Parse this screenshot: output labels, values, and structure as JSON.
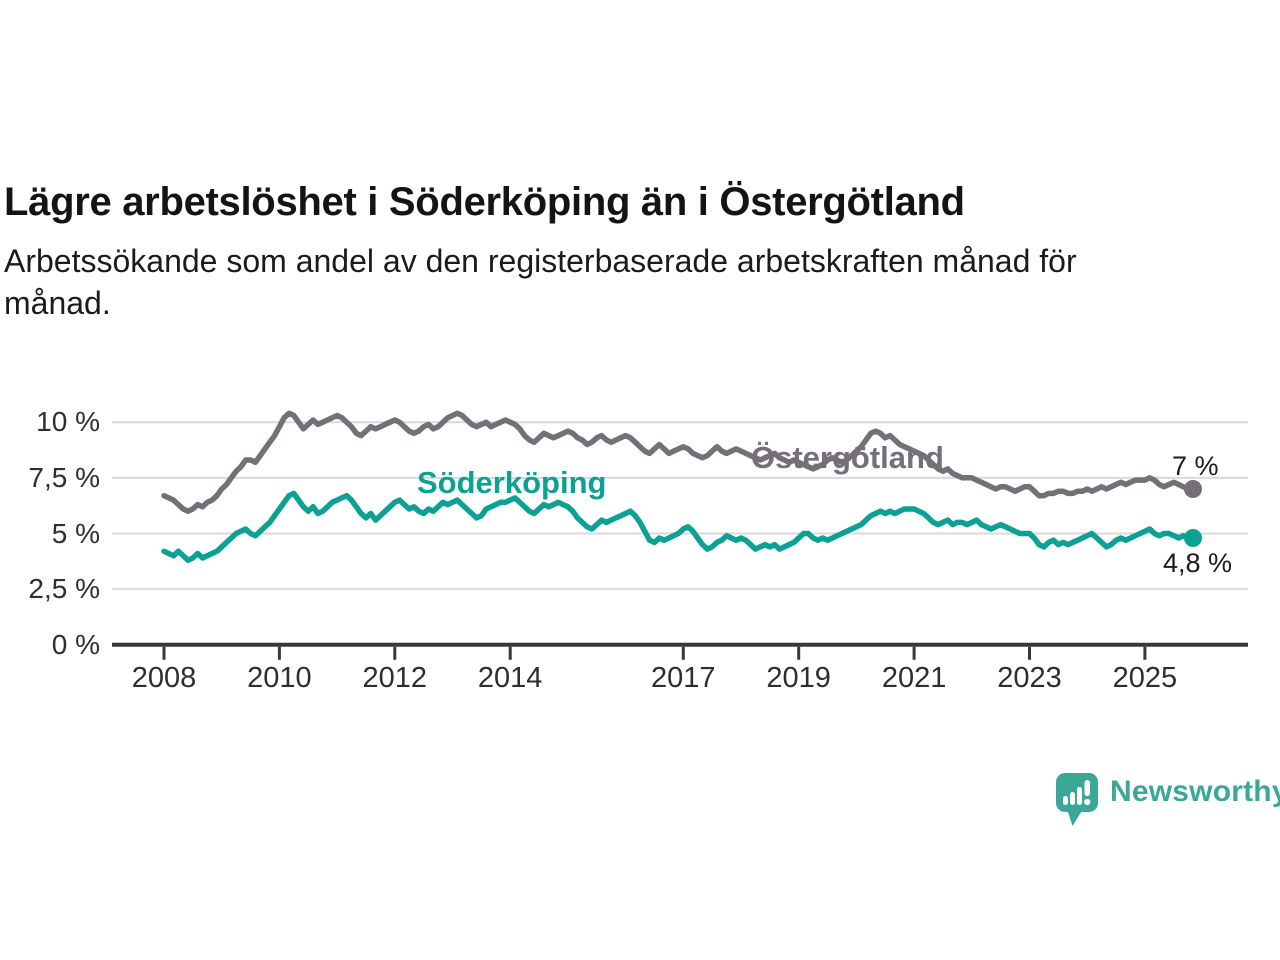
{
  "chart_data": {
    "type": "line",
    "title": "Lägre arbetslöshet i Söderköping än i Östergötland",
    "subtitle_lines": [
      "Arbetssökande som andel av den registerbaserade arbetskraften månad för",
      "månad."
    ],
    "x_unit": "month",
    "x_start": "2008-01",
    "x_end": "2025-11",
    "x_tick_years": [
      2008,
      2010,
      2012,
      2014,
      2017,
      2019,
      2021,
      2023,
      2025
    ],
    "y_ticks": [
      {
        "value": 10,
        "label": "10 %"
      },
      {
        "value": 7.5,
        "label": "7,5 %"
      },
      {
        "value": 5,
        "label": "5 %"
      },
      {
        "value": 2.5,
        "label": "2,5 %"
      },
      {
        "value": 0,
        "label": "0 %"
      }
    ],
    "ylim": [
      0,
      11
    ],
    "grid": true,
    "legend_position": "inline-labels",
    "series": [
      {
        "name": "Östergötland",
        "color": "#756f77",
        "end_label": "7 %",
        "end_value": 7.0,
        "values": [
          6.7,
          6.6,
          6.5,
          6.3,
          6.1,
          6.0,
          6.1,
          6.3,
          6.2,
          6.4,
          6.5,
          6.7,
          7.0,
          7.2,
          7.5,
          7.8,
          8.0,
          8.3,
          8.3,
          8.2,
          8.5,
          8.8,
          9.1,
          9.4,
          9.8,
          10.2,
          10.4,
          10.3,
          10.0,
          9.7,
          9.9,
          10.1,
          9.9,
          10.0,
          10.1,
          10.2,
          10.3,
          10.2,
          10.0,
          9.8,
          9.5,
          9.4,
          9.6,
          9.8,
          9.7,
          9.8,
          9.9,
          10.0,
          10.1,
          10.0,
          9.8,
          9.6,
          9.5,
          9.6,
          9.8,
          9.9,
          9.7,
          9.8,
          10.0,
          10.2,
          10.3,
          10.4,
          10.3,
          10.1,
          9.9,
          9.8,
          9.9,
          10.0,
          9.8,
          9.9,
          10.0,
          10.1,
          10.0,
          9.9,
          9.7,
          9.4,
          9.2,
          9.1,
          9.3,
          9.5,
          9.4,
          9.3,
          9.4,
          9.5,
          9.6,
          9.5,
          9.3,
          9.2,
          9.0,
          9.1,
          9.3,
          9.4,
          9.2,
          9.1,
          9.2,
          9.3,
          9.4,
          9.3,
          9.1,
          8.9,
          8.7,
          8.6,
          8.8,
          9.0,
          8.8,
          8.6,
          8.7,
          8.8,
          8.9,
          8.8,
          8.6,
          8.5,
          8.4,
          8.5,
          8.7,
          8.9,
          8.7,
          8.6,
          8.7,
          8.8,
          8.7,
          8.6,
          8.5,
          8.4,
          8.3,
          8.4,
          8.5,
          8.6,
          8.4,
          8.3,
          8.2,
          8.3,
          8.2,
          8.1,
          8.0,
          7.9,
          8.0,
          8.1,
          8.3,
          8.4,
          8.3,
          8.2,
          8.3,
          8.5,
          8.7,
          8.9,
          9.2,
          9.5,
          9.6,
          9.5,
          9.3,
          9.4,
          9.2,
          9.0,
          8.9,
          8.8,
          8.7,
          8.6,
          8.5,
          8.3,
          8.1,
          7.9,
          7.8,
          7.9,
          7.7,
          7.6,
          7.5,
          7.5,
          7.5,
          7.4,
          7.3,
          7.2,
          7.1,
          7.0,
          7.1,
          7.1,
          7.0,
          6.9,
          7.0,
          7.1,
          7.1,
          6.9,
          6.7,
          6.7,
          6.8,
          6.8,
          6.9,
          6.9,
          6.8,
          6.8,
          6.9,
          6.9,
          7.0,
          6.9,
          7.0,
          7.1,
          7.0,
          7.1,
          7.2,
          7.3,
          7.2,
          7.3,
          7.4,
          7.4,
          7.4,
          7.5,
          7.4,
          7.2,
          7.1,
          7.2,
          7.3,
          7.2,
          7.1,
          7.0,
          7.0
        ]
      },
      {
        "name": "Söderköping",
        "color": "#0ca192",
        "end_label": "4,8 %",
        "end_value": 4.8,
        "values": [
          4.2,
          4.1,
          4.0,
          4.2,
          4.0,
          3.8,
          3.9,
          4.1,
          3.9,
          4.0,
          4.1,
          4.2,
          4.4,
          4.6,
          4.8,
          5.0,
          5.1,
          5.2,
          5.0,
          4.9,
          5.1,
          5.3,
          5.5,
          5.8,
          6.1,
          6.4,
          6.7,
          6.8,
          6.5,
          6.2,
          6.0,
          6.2,
          5.9,
          6.0,
          6.2,
          6.4,
          6.5,
          6.6,
          6.7,
          6.5,
          6.2,
          5.9,
          5.7,
          5.9,
          5.6,
          5.8,
          6.0,
          6.2,
          6.4,
          6.5,
          6.3,
          6.1,
          6.2,
          6.0,
          5.9,
          6.1,
          6.0,
          6.2,
          6.4,
          6.3,
          6.4,
          6.5,
          6.3,
          6.1,
          5.9,
          5.7,
          5.8,
          6.1,
          6.2,
          6.3,
          6.4,
          6.4,
          6.5,
          6.6,
          6.4,
          6.2,
          6.0,
          5.9,
          6.1,
          6.3,
          6.2,
          6.3,
          6.4,
          6.3,
          6.2,
          6.0,
          5.7,
          5.5,
          5.3,
          5.2,
          5.4,
          5.6,
          5.5,
          5.6,
          5.7,
          5.8,
          5.9,
          6.0,
          5.8,
          5.5,
          5.1,
          4.7,
          4.6,
          4.8,
          4.7,
          4.8,
          4.9,
          5.0,
          5.2,
          5.3,
          5.1,
          4.8,
          4.5,
          4.3,
          4.4,
          4.6,
          4.7,
          4.9,
          4.8,
          4.7,
          4.8,
          4.7,
          4.5,
          4.3,
          4.4,
          4.5,
          4.4,
          4.5,
          4.3,
          4.4,
          4.5,
          4.6,
          4.8,
          5.0,
          5.0,
          4.8,
          4.7,
          4.8,
          4.7,
          4.8,
          4.9,
          5.0,
          5.1,
          5.2,
          5.3,
          5.4,
          5.6,
          5.8,
          5.9,
          6.0,
          5.9,
          6.0,
          5.9,
          6.0,
          6.1,
          6.1,
          6.1,
          6.0,
          5.9,
          5.7,
          5.5,
          5.4,
          5.5,
          5.6,
          5.4,
          5.5,
          5.5,
          5.4,
          5.5,
          5.6,
          5.4,
          5.3,
          5.2,
          5.3,
          5.4,
          5.3,
          5.2,
          5.1,
          5.0,
          5.0,
          5.0,
          4.8,
          4.5,
          4.4,
          4.6,
          4.7,
          4.5,
          4.6,
          4.5,
          4.6,
          4.7,
          4.8,
          4.9,
          5.0,
          4.8,
          4.6,
          4.4,
          4.5,
          4.7,
          4.8,
          4.7,
          4.8,
          4.9,
          5.0,
          5.1,
          5.2,
          5.0,
          4.9,
          5.0,
          5.0,
          4.9,
          4.8,
          4.9,
          4.8,
          4.8
        ]
      }
    ]
  },
  "footer": {
    "brand": "Newsworthy",
    "brand_color": "#3ba897",
    "logo_icon": "newsworthy-bar-chart-speech-bubble-icon"
  }
}
